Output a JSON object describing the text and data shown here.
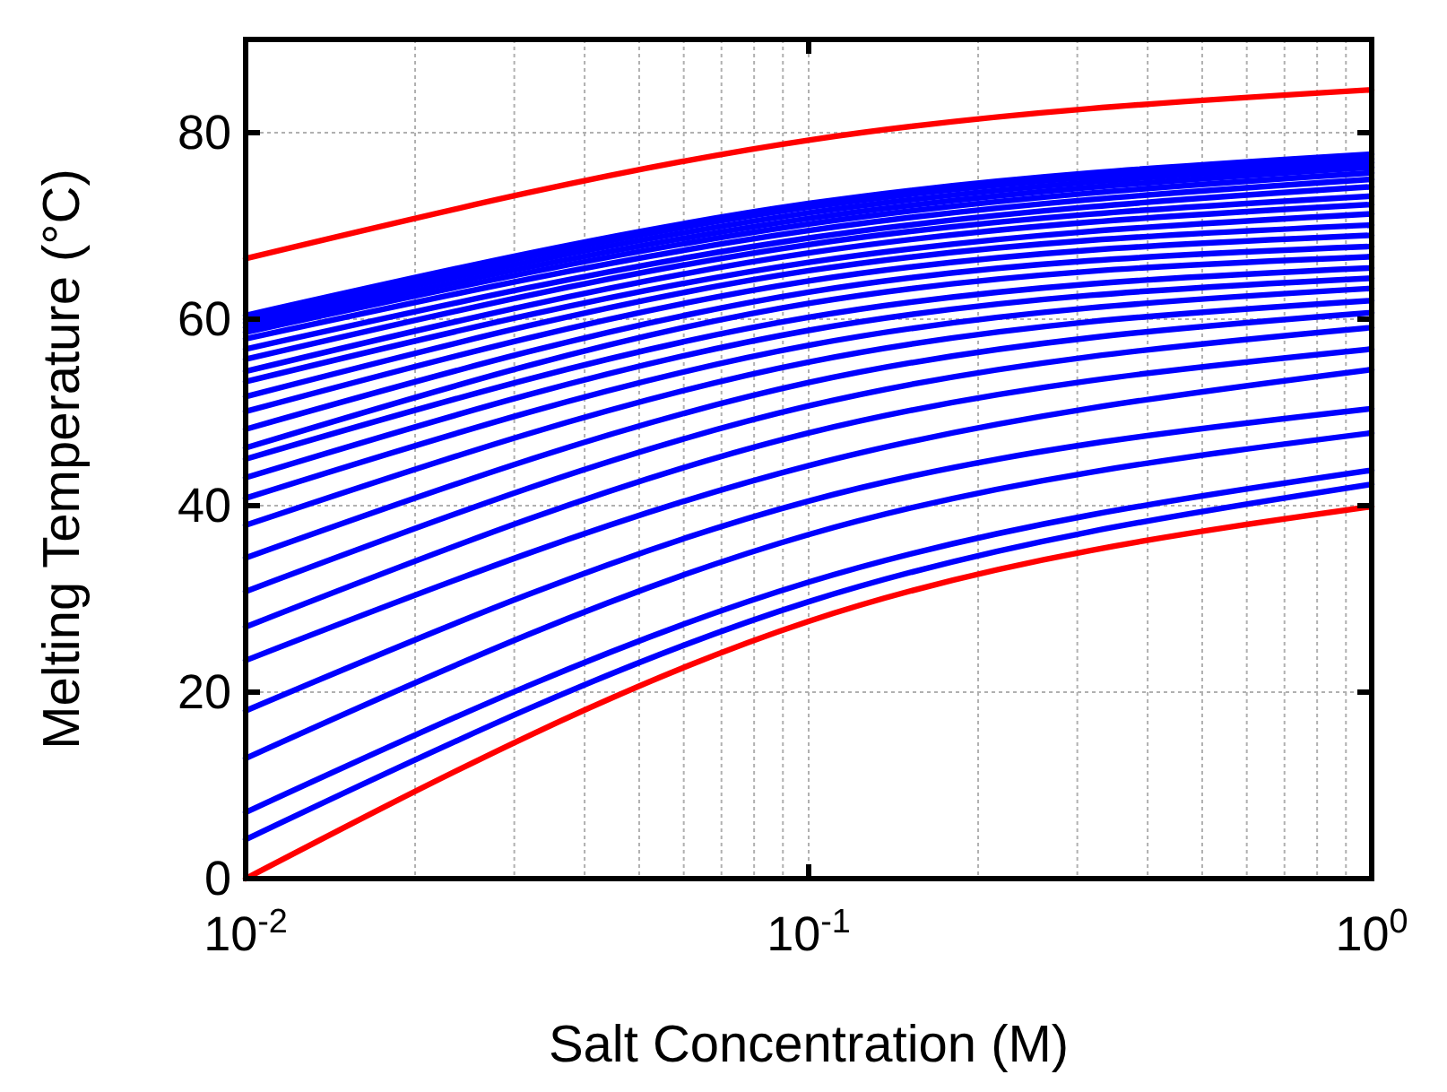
{
  "chart_data": {
    "type": "line",
    "xlabel": "Salt Concentration (M)",
    "ylabel": "Melting Temperature (°C)",
    "x": [
      0.01,
      0.1,
      1
    ],
    "log": "x",
    "grid": true,
    "line_style": "solid",
    "marker": "none",
    "xlim": [
      0.01,
      1
    ],
    "xticks": [
      {
        "value": 0.01,
        "label": "10$^{-2}$"
      },
      {
        "value": 0.1,
        "label": "10$^{-1}$"
      },
      {
        "value": 1,
        "label": "10$^{0}$"
      }
    ],
    "ylim": [
      0,
      90
    ],
    "yticks": [
      0,
      20,
      40,
      60,
      80
    ],
    "series": [
      {
        "color": "#ff0000",
        "values": [
          66.5,
          79.2,
          84.6
        ]
      },
      {
        "color": "#0000ff",
        "values": [
          60.4,
          72.4,
          77.7
        ]
      },
      {
        "color": "#0000ff",
        "values": [
          60.0,
          72.0,
          77.2
        ]
      },
      {
        "color": "#0000ff",
        "values": [
          59.6,
          71.4,
          76.8
        ]
      },
      {
        "color": "#0000ff",
        "values": [
          59.1,
          70.8,
          76.3
        ]
      },
      {
        "color": "#0000ff",
        "values": [
          58.6,
          70.2,
          75.7
        ]
      },
      {
        "color": "#0000ff",
        "values": [
          57.9,
          69.5,
          75.0
        ]
      },
      {
        "color": "#0000ff",
        "values": [
          56.8,
          68.7,
          74.2
        ]
      },
      {
        "color": "#0000ff",
        "values": [
          55.7,
          68.0,
          73.2
        ]
      },
      {
        "color": "#0000ff",
        "values": [
          54.4,
          67.1,
          72.3
        ]
      },
      {
        "color": "#0000ff",
        "values": [
          53.3,
          66.1,
          71.3
        ]
      },
      {
        "color": "#0000ff",
        "values": [
          51.7,
          65.2,
          70.1
        ]
      },
      {
        "color": "#0000ff",
        "values": [
          50.1,
          64.1,
          69.0
        ]
      },
      {
        "color": "#0000ff",
        "values": [
          48.2,
          62.9,
          67.8
        ]
      },
      {
        "color": "#0000ff",
        "values": [
          46.2,
          61.7,
          66.7
        ]
      },
      {
        "color": "#0000ff",
        "values": [
          45.0,
          60.2,
          65.5
        ]
      },
      {
        "color": "#0000ff",
        "values": [
          43.0,
          58.8,
          64.4
        ]
      },
      {
        "color": "#0000ff",
        "values": [
          40.8,
          57.2,
          63.3
        ]
      },
      {
        "color": "#0000ff",
        "values": [
          37.9,
          55.4,
          62.0
        ]
      },
      {
        "color": "#0000ff",
        "values": [
          34.4,
          53.2,
          60.7
        ]
      },
      {
        "color": "#0000ff",
        "values": [
          30.8,
          50.7,
          59.1
        ]
      },
      {
        "color": "#0000ff",
        "values": [
          27.0,
          47.8,
          56.8
        ]
      },
      {
        "color": "#0000ff",
        "values": [
          23.4,
          44.3,
          54.6
        ]
      },
      {
        "color": "#0000ff",
        "values": [
          18.0,
          40.5,
          50.4
        ]
      },
      {
        "color": "#0000ff",
        "values": [
          12.9,
          36.9,
          47.8
        ]
      },
      {
        "color": "#0000ff",
        "values": [
          7.1,
          31.8,
          43.8
        ]
      },
      {
        "color": "#0000ff",
        "values": [
          4.2,
          29.7,
          42.3
        ]
      },
      {
        "color": "#ff0000",
        "values": [
          0,
          27.6,
          39.9
        ]
      }
    ]
  }
}
